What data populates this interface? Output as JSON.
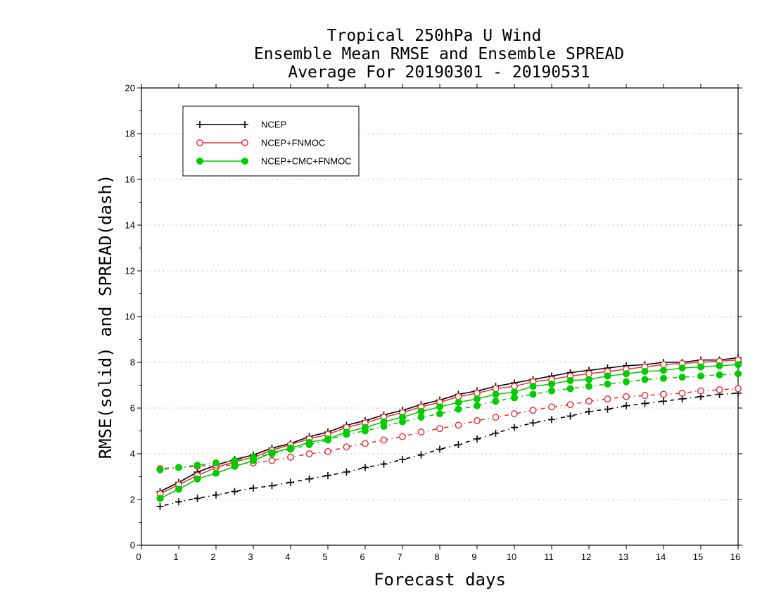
{
  "chart_data": {
    "type": "line",
    "title_lines": [
      "Tropical 250hPa U Wind",
      "Ensemble Mean RMSE and Ensemble SPREAD",
      "Average For 20190301 - 20190531"
    ],
    "xlabel": "Forecast days",
    "ylabel": "RMSE(solid) and SPREAD(dash)",
    "xlim": [
      0,
      16
    ],
    "ylim": [
      0,
      20
    ],
    "xticks": [
      "0",
      "1",
      "2",
      "3",
      "4",
      "5",
      "6",
      "7",
      "8",
      "9",
      "10",
      "11",
      "12",
      "13",
      "14",
      "15",
      "16"
    ],
    "yticks": [
      "0",
      "2",
      "4",
      "6",
      "8",
      "10",
      "12",
      "14",
      "16",
      "18",
      "20"
    ],
    "grid": "horizontal dotted",
    "legend_position": "top-left",
    "x": [
      0.5,
      1,
      1.5,
      2,
      2.5,
      3,
      3.5,
      4,
      4.5,
      5,
      5.5,
      6,
      6.5,
      7,
      7.5,
      8,
      8.5,
      9,
      9.5,
      10,
      10.5,
      11,
      11.5,
      12,
      12.5,
      13,
      13.5,
      14,
      14.5,
      15,
      15.5,
      16
    ],
    "series": [
      {
        "name": "NCEP",
        "color": "#000000",
        "marker": "plus",
        "rmse": [
          2.35,
          2.75,
          3.2,
          3.5,
          3.75,
          3.95,
          4.25,
          4.45,
          4.75,
          4.95,
          5.25,
          5.45,
          5.7,
          5.9,
          6.15,
          6.35,
          6.6,
          6.75,
          6.95,
          7.1,
          7.25,
          7.4,
          7.55,
          7.65,
          7.75,
          7.85,
          7.9,
          8.0,
          8.0,
          8.1,
          8.1,
          8.2
        ],
        "spread": [
          1.7,
          1.9,
          2.05,
          2.2,
          2.35,
          2.5,
          2.6,
          2.75,
          2.9,
          3.05,
          3.2,
          3.4,
          3.55,
          3.75,
          3.95,
          4.2,
          4.4,
          4.65,
          4.9,
          5.15,
          5.35,
          5.5,
          5.65,
          5.85,
          5.95,
          6.1,
          6.2,
          6.3,
          6.4,
          6.5,
          6.6,
          6.65
        ]
      },
      {
        "name": "NCEP+FNMOC",
        "color": "#e8363a",
        "marker": "open-circle",
        "rmse": [
          2.25,
          2.65,
          3.05,
          3.4,
          3.65,
          3.85,
          4.15,
          4.4,
          4.65,
          4.85,
          5.15,
          5.35,
          5.6,
          5.8,
          6.05,
          6.25,
          6.5,
          6.65,
          6.85,
          6.95,
          7.15,
          7.25,
          7.4,
          7.5,
          7.6,
          7.7,
          7.8,
          7.9,
          7.95,
          8.0,
          8.05,
          8.1
        ],
        "spread": [
          3.35,
          3.4,
          3.45,
          3.5,
          3.5,
          3.6,
          3.7,
          3.85,
          4.0,
          4.1,
          4.3,
          4.45,
          4.6,
          4.75,
          4.95,
          5.1,
          5.25,
          5.45,
          5.6,
          5.75,
          5.9,
          6.05,
          6.15,
          6.3,
          6.4,
          6.5,
          6.55,
          6.6,
          6.65,
          6.75,
          6.8,
          6.85
        ]
      },
      {
        "name": "NCEP+CMC+FNMOC",
        "color": "#00cc00",
        "marker": "filled-circle",
        "rmse": [
          2.05,
          2.45,
          2.9,
          3.15,
          3.45,
          3.7,
          4.05,
          4.25,
          4.5,
          4.65,
          4.95,
          5.15,
          5.4,
          5.6,
          5.85,
          6.05,
          6.25,
          6.4,
          6.6,
          6.7,
          6.95,
          7.05,
          7.2,
          7.25,
          7.4,
          7.5,
          7.6,
          7.65,
          7.75,
          7.8,
          7.85,
          7.9
        ],
        "spread": [
          3.3,
          3.4,
          3.5,
          3.6,
          3.7,
          3.85,
          4.0,
          4.2,
          4.4,
          4.6,
          4.85,
          5.0,
          5.2,
          5.4,
          5.6,
          5.75,
          5.95,
          6.1,
          6.3,
          6.45,
          6.6,
          6.75,
          6.85,
          6.95,
          7.05,
          7.15,
          7.25,
          7.3,
          7.35,
          7.4,
          7.45,
          7.5
        ]
      }
    ]
  }
}
